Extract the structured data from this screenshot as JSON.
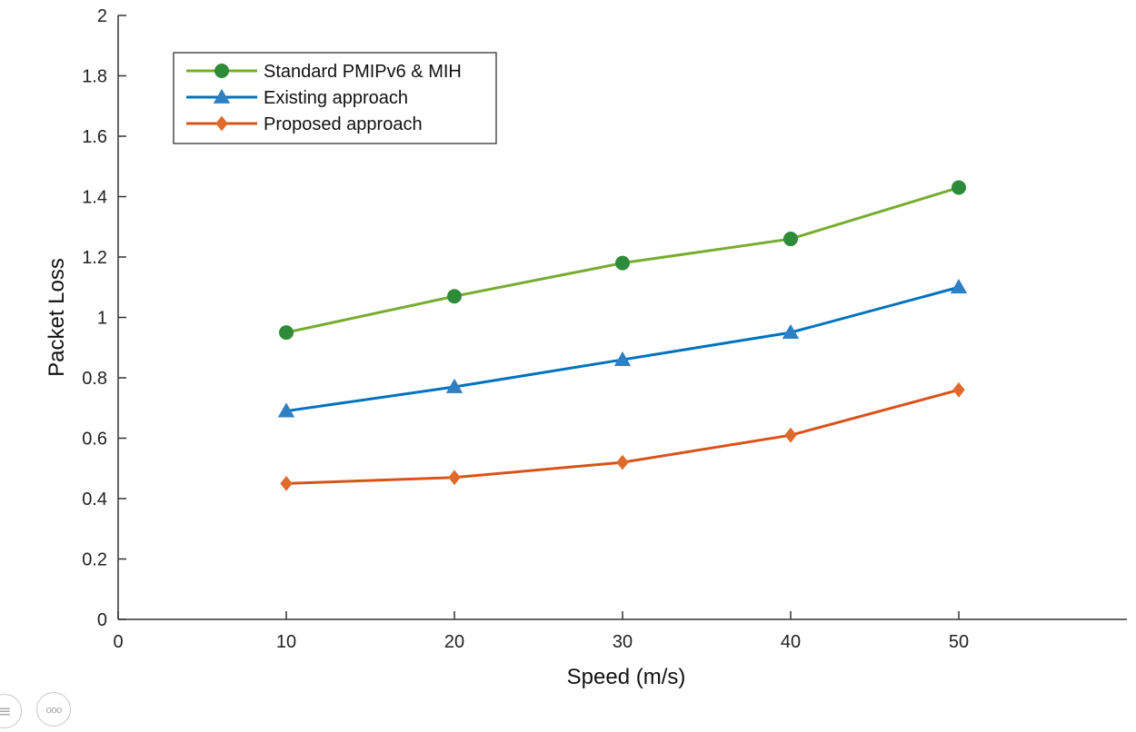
{
  "chart_data": {
    "type": "line",
    "title": "",
    "xlabel": "Speed (m/s)",
    "ylabel": "Packet Loss",
    "xlim": [
      0,
      60
    ],
    "ylim": [
      0,
      2
    ],
    "xticks": [
      0,
      10,
      20,
      30,
      40,
      50
    ],
    "xtick_labels": [
      "0",
      "10",
      "20",
      "30",
      "40",
      "50"
    ],
    "yticks": [
      0,
      0.2,
      0.4,
      0.6,
      0.8,
      1,
      1.2,
      1.4,
      1.6,
      1.8,
      2
    ],
    "ytick_labels": [
      "0",
      "0.2",
      "0.4",
      "0.6",
      "0.8",
      "1",
      "1.2",
      "1.4",
      "1.6",
      "1.8",
      "2"
    ],
    "grid": false,
    "legend_position": "top-left",
    "x": [
      10,
      20,
      30,
      40,
      50
    ],
    "series": [
      {
        "name": "Standard PMIPv6 & MIH",
        "marker": "circle",
        "color": "#77ac30",
        "marker_color": "#2e8b3a",
        "values": [
          0.95,
          1.07,
          1.18,
          1.26,
          1.43
        ]
      },
      {
        "name": "Existing approach",
        "marker": "triangle",
        "color": "#0072bd",
        "marker_color": "#2f7fc4",
        "values": [
          0.69,
          0.77,
          0.86,
          0.95,
          1.1
        ]
      },
      {
        "name": "Proposed approach",
        "marker": "diamond",
        "color": "#d95319",
        "marker_color": "#e06a2c",
        "values": [
          0.45,
          0.47,
          0.52,
          0.61,
          0.76
        ]
      }
    ]
  },
  "corner_icons": [
    {
      "name": "document-icon",
      "glyph": "≡"
    },
    {
      "name": "more-icon",
      "glyph": "ooo"
    }
  ]
}
